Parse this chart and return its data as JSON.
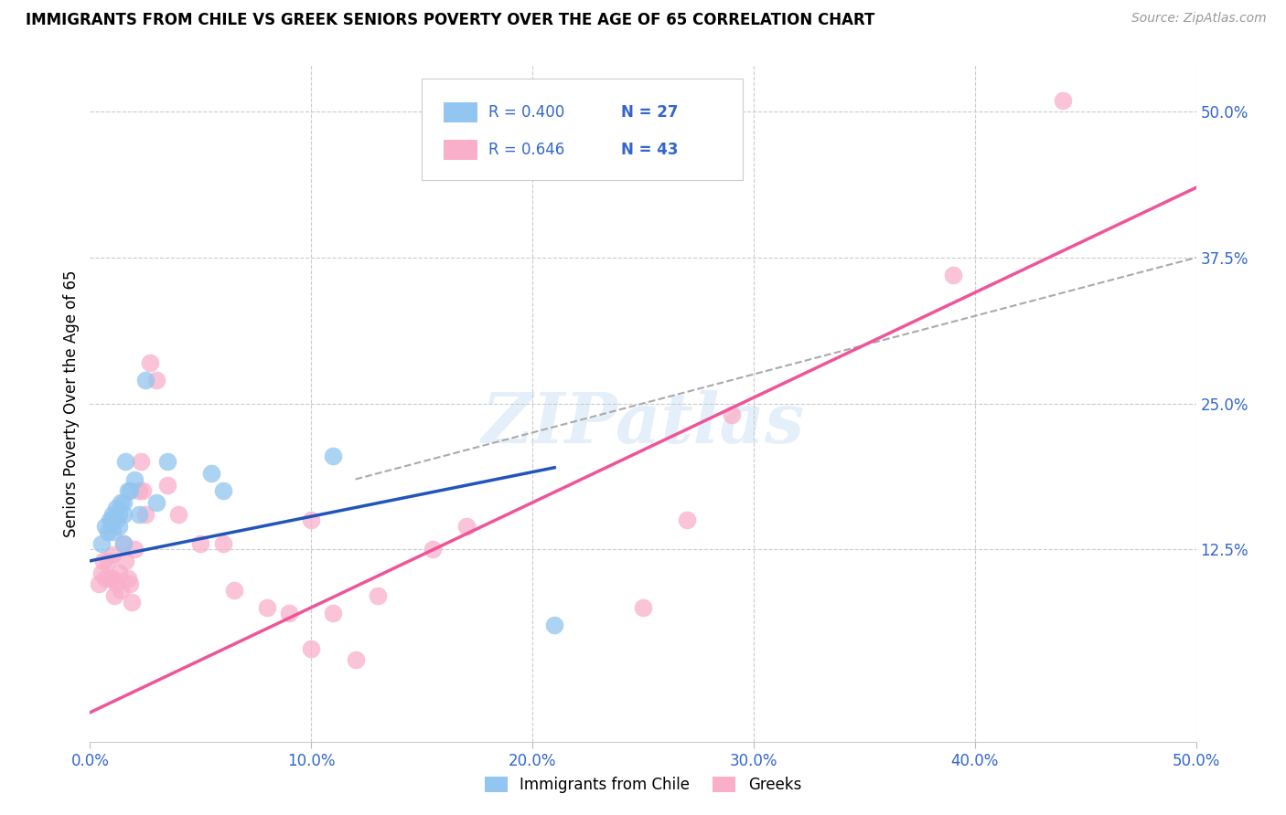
{
  "title": "IMMIGRANTS FROM CHILE VS GREEK SENIORS POVERTY OVER THE AGE OF 65 CORRELATION CHART",
  "source": "Source: ZipAtlas.com",
  "ylabel": "Seniors Poverty Over the Age of 65",
  "xlabel_ticks": [
    "0.0%",
    "10.0%",
    "20.0%",
    "30.0%",
    "40.0%",
    "50.0%"
  ],
  "ylabel_ticks": [
    "12.5%",
    "25.0%",
    "37.5%",
    "50.0%"
  ],
  "xlim": [
    0,
    0.5
  ],
  "ylim": [
    -0.04,
    0.54
  ],
  "legend_labels": [
    "Immigrants from Chile",
    "Greeks"
  ],
  "legend_r": [
    "R = 0.400",
    "R = 0.646"
  ],
  "legend_n": [
    "N = 27",
    "N = 43"
  ],
  "color_blue": "#92C5F0",
  "color_pink": "#F9AFCA",
  "line_blue": "#2255BB",
  "line_pink": "#EE5599",
  "watermark": "ZIPatlas",
  "chile_x": [
    0.005,
    0.007,
    0.008,
    0.009,
    0.01,
    0.01,
    0.01,
    0.012,
    0.012,
    0.013,
    0.013,
    0.014,
    0.015,
    0.015,
    0.015,
    0.016,
    0.017,
    0.018,
    0.02,
    0.022,
    0.025,
    0.03,
    0.035,
    0.055,
    0.06,
    0.11,
    0.21
  ],
  "chile_y": [
    0.13,
    0.145,
    0.14,
    0.15,
    0.155,
    0.15,
    0.14,
    0.16,
    0.15,
    0.155,
    0.145,
    0.165,
    0.165,
    0.155,
    0.13,
    0.2,
    0.175,
    0.175,
    0.185,
    0.155,
    0.27,
    0.165,
    0.2,
    0.19,
    0.175,
    0.205,
    0.06
  ],
  "greek_x": [
    0.004,
    0.005,
    0.006,
    0.007,
    0.008,
    0.009,
    0.01,
    0.01,
    0.011,
    0.012,
    0.013,
    0.014,
    0.015,
    0.016,
    0.017,
    0.018,
    0.019,
    0.02,
    0.022,
    0.023,
    0.024,
    0.025,
    0.027,
    0.03,
    0.035,
    0.04,
    0.05,
    0.06,
    0.065,
    0.08,
    0.09,
    0.1,
    0.1,
    0.11,
    0.12,
    0.13,
    0.155,
    0.17,
    0.25,
    0.27,
    0.29,
    0.39,
    0.44
  ],
  "greek_y": [
    0.095,
    0.105,
    0.115,
    0.1,
    0.115,
    0.1,
    0.12,
    0.1,
    0.085,
    0.095,
    0.105,
    0.09,
    0.13,
    0.115,
    0.1,
    0.095,
    0.08,
    0.125,
    0.175,
    0.2,
    0.175,
    0.155,
    0.285,
    0.27,
    0.18,
    0.155,
    0.13,
    0.13,
    0.09,
    0.075,
    0.07,
    0.15,
    0.04,
    0.07,
    0.03,
    0.085,
    0.125,
    0.145,
    0.075,
    0.15,
    0.24,
    0.36,
    0.51
  ],
  "blue_line_x0": 0.0,
  "blue_line_y0": 0.115,
  "blue_line_x1": 0.21,
  "blue_line_y1": 0.195,
  "pink_line_x0": 0.0,
  "pink_line_y0": -0.015,
  "pink_line_x1": 0.5,
  "pink_line_y1": 0.435,
  "dash_line_x0": 0.12,
  "dash_line_y0": 0.185,
  "dash_line_x1": 0.5,
  "dash_line_y1": 0.375
}
